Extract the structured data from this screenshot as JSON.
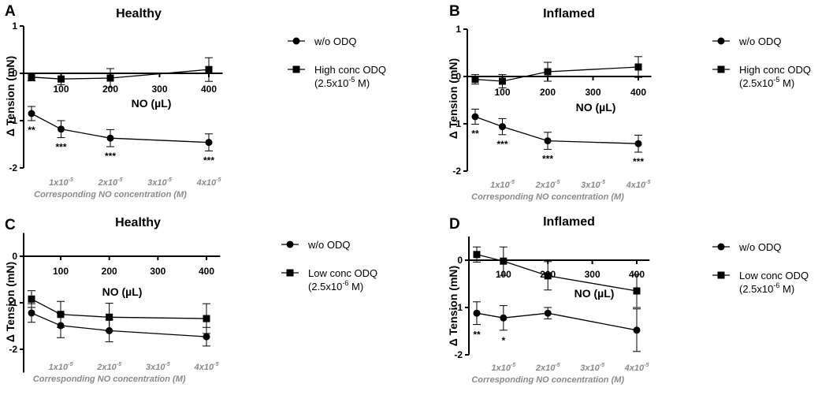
{
  "figure": {
    "x_unit_label": "NO (µL)",
    "y_label": "Δ Tension (mN)",
    "secondary_axis_title": "Corresponding NO concentration (M)"
  },
  "chart_data": [
    {
      "type": "line",
      "panel": "A",
      "title": "Healthy",
      "xlabel": "NO (µL)",
      "ylabel": "Δ Tension (mN)",
      "xlim": [
        0,
        420
      ],
      "ylim": [
        -2,
        1
      ],
      "x_ticks": [
        100,
        200,
        300,
        400
      ],
      "y_ticks": [
        1,
        0,
        -1,
        -2
      ],
      "secondary_ticks": [
        {
          "x": 100,
          "base": "1x10",
          "exp": "-5"
        },
        {
          "x": 200,
          "base": "2x10",
          "exp": "-5"
        },
        {
          "x": 300,
          "base": "3x10",
          "exp": "-5"
        },
        {
          "x": 400,
          "base": "4x10",
          "exp": "-5"
        }
      ],
      "secondary_label": "Corresponding NO concentration (M)",
      "series": [
        {
          "name": "w/o ODQ",
          "marker": "circle",
          "x": [
            40,
            100,
            200,
            400
          ],
          "y": [
            -0.85,
            -1.18,
            -1.37,
            -1.46
          ],
          "err": [
            0.15,
            0.18,
            0.18,
            0.18
          ],
          "significance": [
            "**",
            "***",
            "***",
            "***"
          ]
        },
        {
          "name": "High conc ODQ",
          "name_line2": "(2.5x10",
          "conc_exp": "-5",
          "name_tail": " M)",
          "marker": "square",
          "x": [
            40,
            100,
            200,
            400
          ],
          "y": [
            -0.08,
            -0.12,
            -0.1,
            0.08
          ],
          "err": [
            0.08,
            0.12,
            0.2,
            0.25
          ],
          "significance": []
        }
      ]
    },
    {
      "type": "line",
      "panel": "B",
      "title": "Inflamed",
      "xlabel": "NO (µL)",
      "ylabel": "Δ Tension (mN)",
      "xlim": [
        0,
        420
      ],
      "ylim": [
        -2,
        1
      ],
      "x_ticks": [
        100,
        200,
        300,
        400
      ],
      "y_ticks": [
        1,
        0,
        -1,
        -2
      ],
      "secondary_ticks": [
        {
          "x": 100,
          "base": "1x10",
          "exp": "-5"
        },
        {
          "x": 200,
          "base": "2x10",
          "exp": "-5"
        },
        {
          "x": 300,
          "base": "3x10",
          "exp": "-5"
        },
        {
          "x": 400,
          "base": "4x10",
          "exp": "-5"
        }
      ],
      "secondary_label": "Corresponding NO concentration (M)",
      "series": [
        {
          "name": "w/o ODQ",
          "marker": "circle",
          "x": [
            40,
            100,
            200,
            400
          ],
          "y": [
            -0.85,
            -1.06,
            -1.36,
            -1.42
          ],
          "err": [
            0.16,
            0.17,
            0.18,
            0.18
          ],
          "significance": [
            "**",
            "***",
            "***",
            "***"
          ]
        },
        {
          "name": "High conc ODQ",
          "name_line2": "(2.5x10",
          "conc_exp": "-5",
          "name_tail": " M)",
          "marker": "square",
          "x": [
            40,
            100,
            200,
            400
          ],
          "y": [
            -0.06,
            -0.1,
            0.1,
            0.2
          ],
          "err": [
            0.1,
            0.14,
            0.2,
            0.22
          ],
          "significance": []
        }
      ]
    },
    {
      "type": "line",
      "panel": "C",
      "title": "Healthy",
      "xlabel": "NO (µL)",
      "ylabel": "Δ Tension (mN)",
      "xlim": [
        0,
        420
      ],
      "ylim": [
        -2.5,
        0.5
      ],
      "x_ticks": [
        100,
        200,
        300,
        400
      ],
      "y_ticks": [
        0,
        -1,
        -2
      ],
      "secondary_ticks": [
        {
          "x": 100,
          "base": "1x10",
          "exp": "-5"
        },
        {
          "x": 200,
          "base": "2x10",
          "exp": "-5"
        },
        {
          "x": 300,
          "base": "3x10",
          "exp": "-5"
        },
        {
          "x": 400,
          "base": "4x10",
          "exp": "-5"
        }
      ],
      "secondary_label": "Corresponding NO concentration (M)",
      "series": [
        {
          "name": "w/o ODQ",
          "marker": "circle",
          "x": [
            40,
            100,
            200,
            400
          ],
          "y": [
            -1.22,
            -1.49,
            -1.6,
            -1.73
          ],
          "err": [
            0.2,
            0.26,
            0.24,
            0.2
          ],
          "significance": []
        },
        {
          "name": "Low conc ODQ",
          "name_line2": "(2.5x10",
          "conc_exp": "-6",
          "name_tail": " M)",
          "marker": "square",
          "x": [
            40,
            100,
            200,
            400
          ],
          "y": [
            -0.92,
            -1.25,
            -1.31,
            -1.34
          ],
          "err": [
            0.18,
            0.28,
            0.3,
            0.32
          ],
          "significance": []
        }
      ]
    },
    {
      "type": "line",
      "panel": "D",
      "title": "Inflamed",
      "xlabel": "NO (µL)",
      "ylabel": "Δ Tension (mN)",
      "xlim": [
        0,
        420
      ],
      "ylim": [
        -2,
        0.5
      ],
      "x_ticks": [
        100,
        200,
        300,
        400
      ],
      "y_ticks": [
        0,
        -1,
        -2
      ],
      "secondary_ticks": [
        {
          "x": 100,
          "base": "1x10",
          "exp": "-5"
        },
        {
          "x": 200,
          "base": "2x10",
          "exp": "-5"
        },
        {
          "x": 300,
          "base": "3x10",
          "exp": "-5"
        },
        {
          "x": 400,
          "base": "4x10",
          "exp": "-5"
        }
      ],
      "secondary_label": "Corresponding NO concentration (M)",
      "series": [
        {
          "name": "w/o ODQ",
          "marker": "circle",
          "x": [
            40,
            100,
            200,
            400
          ],
          "y": [
            -1.12,
            -1.22,
            -1.12,
            -1.48
          ],
          "err": [
            0.24,
            0.26,
            0.12,
            0.45
          ],
          "significance": [
            "**",
            "*",
            "",
            ""
          ]
        },
        {
          "name": "Low conc ODQ",
          "name_line2": "(2.5x10",
          "conc_exp": "-6",
          "name_tail": " M)",
          "marker": "square",
          "x": [
            40,
            100,
            200,
            400
          ],
          "y": [
            0.12,
            -0.02,
            -0.33,
            -0.65
          ],
          "err": [
            0.16,
            0.3,
            0.3,
            0.35
          ],
          "significance": []
        }
      ]
    }
  ]
}
